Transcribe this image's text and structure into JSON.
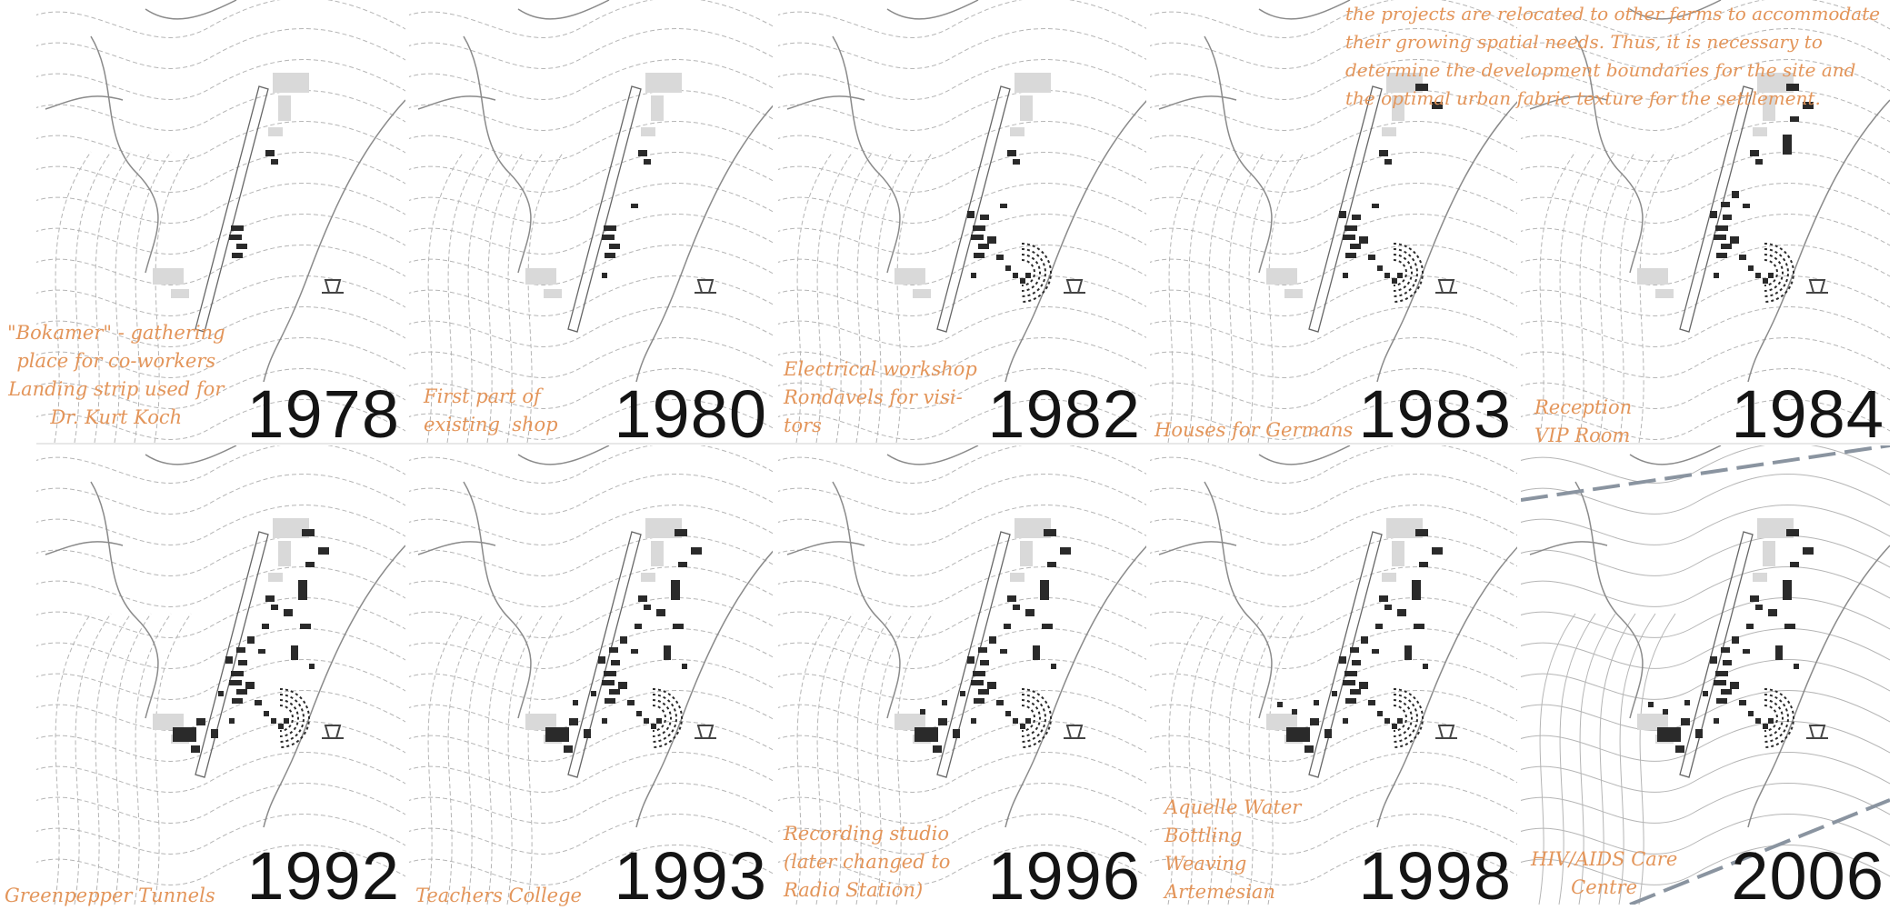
{
  "intro_text": [
    "the projects are relocated to other farms to accommodate",
    "their growing spatial needs. Thus, it is necessary to",
    "determine the development boundaries for the site and",
    "the optimal urban fabric texture for the settlement."
  ],
  "panels": [
    {
      "year": "1978",
      "notes": [
        "\"Bokamer\" - gathering",
        "place for co-workers",
        "Landing strip used for",
        "Dr. Kurt Koch"
      ]
    },
    {
      "year": "1980",
      "notes": [
        "First part of",
        "existing  shop"
      ]
    },
    {
      "year": "1982",
      "notes": [
        "Electrical workshop",
        "Rondavels for visi-",
        "tors"
      ]
    },
    {
      "year": "1983",
      "notes": [
        "Houses for Germans"
      ]
    },
    {
      "year": "1984",
      "notes": [
        "Reception",
        "VIP Room"
      ]
    },
    {
      "year": "1992",
      "notes": [
        "Greenpepper Tunnels"
      ]
    },
    {
      "year": "1993",
      "notes": [
        "Teachers College"
      ]
    },
    {
      "year": "1996",
      "notes": [
        "Recording studio",
        "(later changed to",
        "Radio Station)"
      ]
    },
    {
      "year": "1998",
      "notes": [
        "Aquelle Water",
        "Bottling",
        "Weaving",
        "Artemesian"
      ]
    },
    {
      "year": "2006",
      "notes": [
        "HIV/AIDS Care",
        "Centre"
      ]
    }
  ],
  "colors": {
    "annotation": "#e3955a",
    "year": "#141414",
    "building": "#2a2a2a",
    "existing": "#d9d9d9",
    "contour": "#b5b5b5"
  }
}
